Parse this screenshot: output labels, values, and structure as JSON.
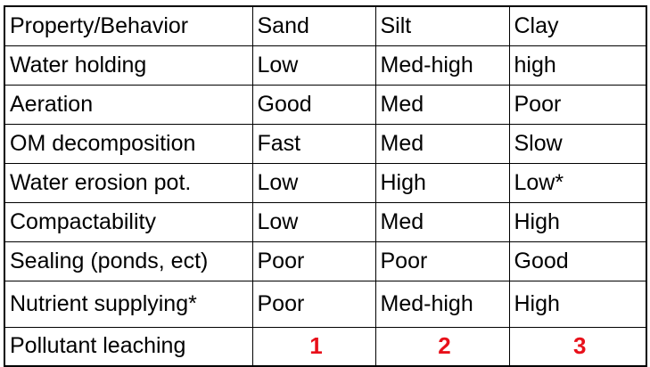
{
  "table": {
    "headers": [
      "Property/Behavior",
      "Sand",
      "Silt",
      "Clay"
    ],
    "rows": [
      [
        "Water holding",
        "Low",
        "Med-high",
        "high"
      ],
      [
        "Aeration",
        "Good",
        "Med",
        "Poor"
      ],
      [
        "OM decomposition",
        "Fast",
        "Med",
        "Slow"
      ],
      [
        "Water erosion pot.",
        "Low",
        "High",
        "Low*"
      ],
      [
        "Compactability",
        "Low",
        "Med",
        "High"
      ],
      [
        "Sealing (ponds, ect)",
        "Poor",
        "Poor",
        "Good"
      ],
      [
        "Nutrient supplying*",
        "Poor",
        "Med-high",
        "High"
      ],
      [
        "Pollutant leaching",
        "1",
        "2",
        "3"
      ]
    ],
    "rank_color": "#e8101a"
  }
}
